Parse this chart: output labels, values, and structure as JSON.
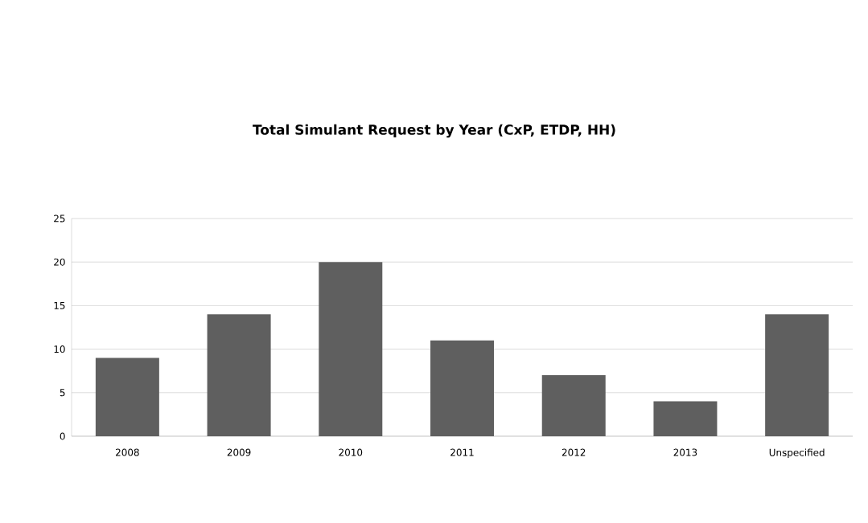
{
  "chart_data": {
    "type": "bar",
    "title": "Total Simulant Request by Year (CxP, ETDP, HH)",
    "categories": [
      "2008",
      "2009",
      "2010",
      "2011",
      "2012",
      "2013",
      "Unspecified"
    ],
    "values": [
      9,
      14,
      20,
      11,
      7,
      4,
      14
    ],
    "color": "#5f5f5f",
    "ylim": [
      0,
      25
    ],
    "yticks": [
      0,
      5,
      10,
      15,
      20,
      25
    ],
    "grid": "y"
  }
}
